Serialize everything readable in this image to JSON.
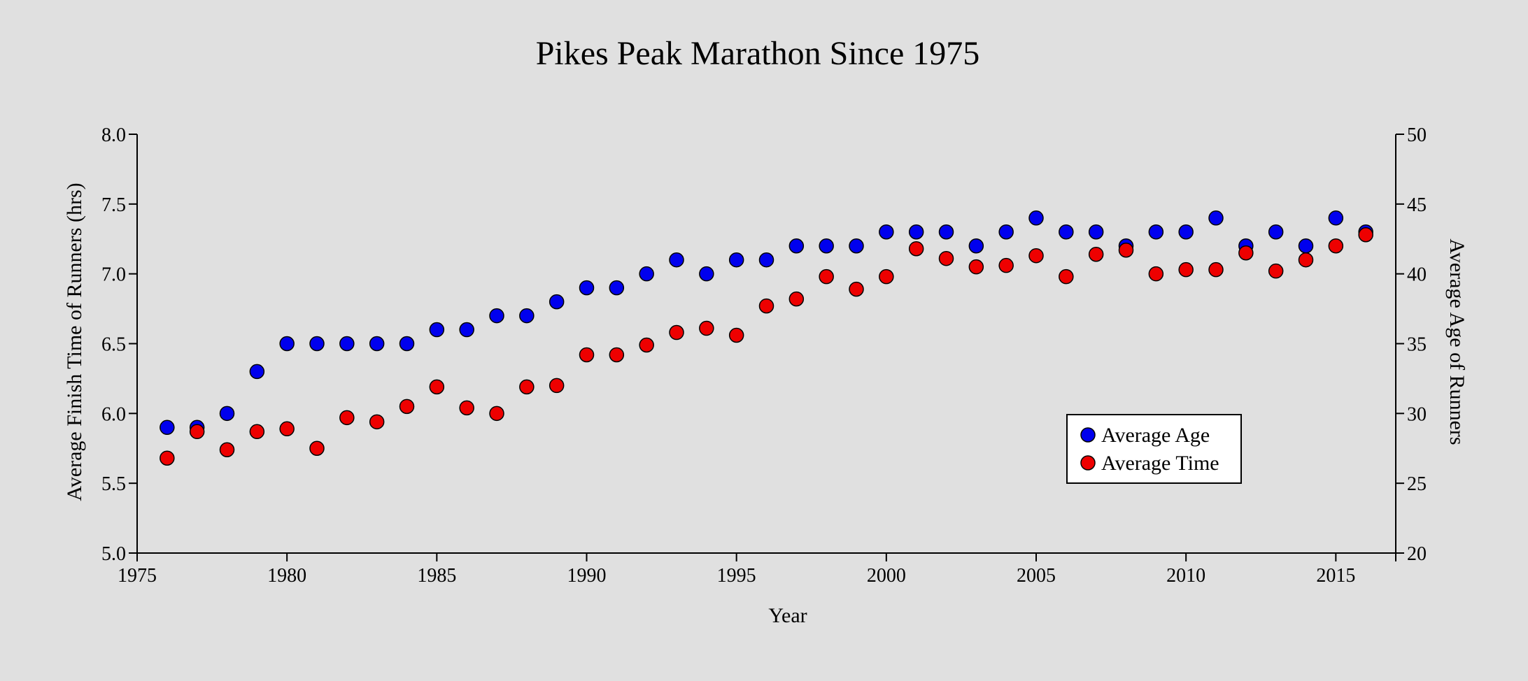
{
  "chart_data": {
    "type": "scatter",
    "title": "Pikes Peak Marathon Since 1975",
    "xlabel": "Year",
    "ylabel_left": "Average Finish Time of Runners (hrs)",
    "ylabel_right": "Average Age of Runners",
    "xlim": [
      1975,
      2017
    ],
    "ylim_left": [
      5.0,
      8.0
    ],
    "ylim_right": [
      20,
      50
    ],
    "x_ticks": [
      "1975",
      "1980",
      "1985",
      "1990",
      "1995",
      "2000",
      "2005",
      "2010",
      "2015"
    ],
    "y_left_ticks": [
      "5.0",
      "5.5",
      "6.0",
      "6.5",
      "7.0",
      "7.5",
      "8.0"
    ],
    "y_right_ticks": [
      "20",
      "25",
      "30",
      "35",
      "40",
      "45",
      "50"
    ],
    "grid": false,
    "legend_position": "lower-right",
    "series": [
      {
        "name": "Average Age",
        "axis": "right",
        "color": "#0000ee",
        "points": [
          [
            1976,
            29
          ],
          [
            1977,
            29
          ],
          [
            1978,
            30
          ],
          [
            1979,
            33
          ],
          [
            1980,
            35
          ],
          [
            1981,
            35
          ],
          [
            1982,
            35
          ],
          [
            1983,
            35
          ],
          [
            1984,
            35
          ],
          [
            1985,
            36
          ],
          [
            1986,
            36
          ],
          [
            1987,
            37
          ],
          [
            1988,
            37
          ],
          [
            1989,
            38
          ],
          [
            1990,
            39
          ],
          [
            1991,
            39
          ],
          [
            1992,
            40
          ],
          [
            1993,
            41
          ],
          [
            1994,
            40
          ],
          [
            1995,
            41
          ],
          [
            1996,
            41
          ],
          [
            1997,
            42
          ],
          [
            1998,
            42
          ],
          [
            1999,
            42
          ],
          [
            2000,
            43
          ],
          [
            2001,
            43
          ],
          [
            2002,
            43
          ],
          [
            2003,
            42
          ],
          [
            2004,
            43
          ],
          [
            2005,
            44
          ],
          [
            2006,
            43
          ],
          [
            2007,
            43
          ],
          [
            2008,
            42
          ],
          [
            2009,
            43
          ],
          [
            2010,
            43
          ],
          [
            2011,
            44
          ],
          [
            2012,
            42
          ],
          [
            2013,
            43
          ],
          [
            2014,
            42
          ],
          [
            2015,
            44
          ],
          [
            2016,
            43
          ]
        ]
      },
      {
        "name": "Average Time",
        "axis": "left",
        "color": "#ee0000",
        "points": [
          [
            1976,
            5.68
          ],
          [
            1977,
            5.87
          ],
          [
            1978,
            5.74
          ],
          [
            1979,
            5.87
          ],
          [
            1980,
            5.89
          ],
          [
            1981,
            5.75
          ],
          [
            1982,
            5.97
          ],
          [
            1983,
            5.94
          ],
          [
            1984,
            6.05
          ],
          [
            1985,
            6.19
          ],
          [
            1986,
            6.04
          ],
          [
            1987,
            6.0
          ],
          [
            1988,
            6.19
          ],
          [
            1989,
            6.2
          ],
          [
            1990,
            6.42
          ],
          [
            1991,
            6.42
          ],
          [
            1992,
            6.49
          ],
          [
            1993,
            6.58
          ],
          [
            1994,
            6.61
          ],
          [
            1995,
            6.56
          ],
          [
            1996,
            6.77
          ],
          [
            1997,
            6.82
          ],
          [
            1998,
            6.98
          ],
          [
            1999,
            6.89
          ],
          [
            2000,
            6.98
          ],
          [
            2001,
            7.18
          ],
          [
            2002,
            7.11
          ],
          [
            2003,
            7.05
          ],
          [
            2004,
            7.06
          ],
          [
            2005,
            7.13
          ],
          [
            2006,
            6.98
          ],
          [
            2007,
            7.14
          ],
          [
            2008,
            7.17
          ],
          [
            2009,
            7.0
          ],
          [
            2010,
            7.03
          ],
          [
            2011,
            7.03
          ],
          [
            2012,
            7.15
          ],
          [
            2013,
            7.02
          ],
          [
            2014,
            7.1
          ],
          [
            2015,
            7.2
          ],
          [
            2016,
            7.28
          ]
        ]
      }
    ]
  }
}
